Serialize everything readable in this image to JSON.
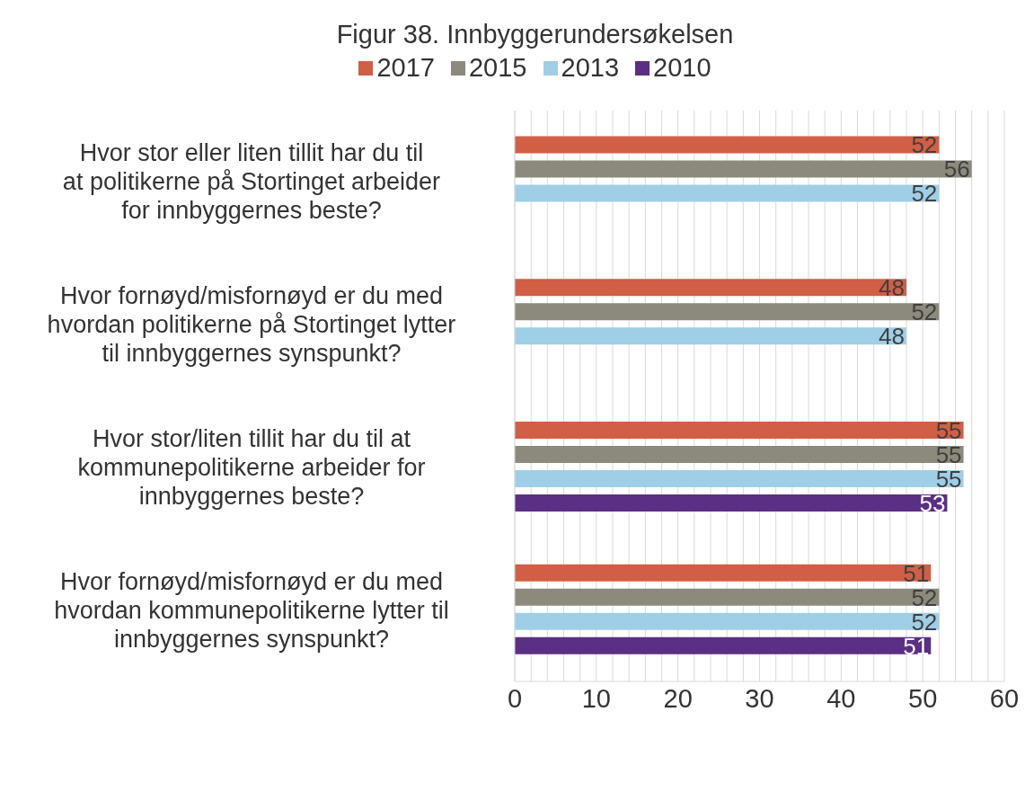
{
  "chart_data": {
    "type": "bar",
    "orientation": "horizontal",
    "title": "Figur 38. Innbyggerundersøkelsen",
    "categories": [
      "Hvor stor eller liten tillit har du til at politikerne på Stortinget arbeider for innbyggernes beste?",
      "Hvor fornøyd/misfornøyd er du med hvordan politikerne på Stortinget lytter til innbyggernes synspunkt?",
      "Hvor stor/liten tillit har du til at kommunepolitikerne arbeider for innbyggernes beste?",
      "Hvor fornøyd/misfornøyd er du med hvordan kommunepolitikerne lytter til innbyggernes synspunkt?"
    ],
    "series": [
      {
        "name": "2017",
        "color": "#d05f45",
        "values": [
          52,
          48,
          55,
          51
        ]
      },
      {
        "name": "2015",
        "color": "#8c8a7c",
        "values": [
          56,
          52,
          55,
          52
        ]
      },
      {
        "name": "2013",
        "color": "#9fcfe6",
        "values": [
          52,
          48,
          55,
          52
        ]
      },
      {
        "name": "2010",
        "color": "#5b2f84",
        "values": [
          null,
          null,
          53,
          51
        ]
      }
    ],
    "xlim": [
      0,
      60
    ],
    "xticks": [
      0,
      {
        "value": 2,
        "label": null
      },
      {
        "value": 4,
        "label": null
      },
      {
        "value": 6,
        "label": null
      },
      {
        "value": 8,
        "label": null
      },
      10,
      {
        "value": 12,
        "label": null
      },
      {
        "value": 14,
        "label": null
      },
      {
        "value": 16,
        "label": null
      },
      {
        "value": 18,
        "label": null
      },
      20,
      {
        "value": 22,
        "label": null
      },
      {
        "value": 24,
        "label": null
      },
      {
        "value": 26,
        "label": null
      },
      {
        "value": 28,
        "label": null
      },
      30,
      {
        "value": 32,
        "label": null
      },
      {
        "value": 34,
        "label": null
      },
      {
        "value": 36,
        "label": null
      },
      {
        "value": 38,
        "label": null
      },
      40,
      {
        "value": 42,
        "label": null
      },
      {
        "value": 44,
        "label": null
      },
      {
        "value": 46,
        "label": null
      },
      {
        "value": 48,
        "label": null
      },
      50,
      {
        "value": 52,
        "label": null
      },
      {
        "value": 54,
        "label": null
      },
      {
        "value": 56,
        "label": null
      },
      {
        "value": 58,
        "label": null
      },
      60
    ],
    "grid": "x",
    "legend": "top",
    "data_labels": true
  }
}
